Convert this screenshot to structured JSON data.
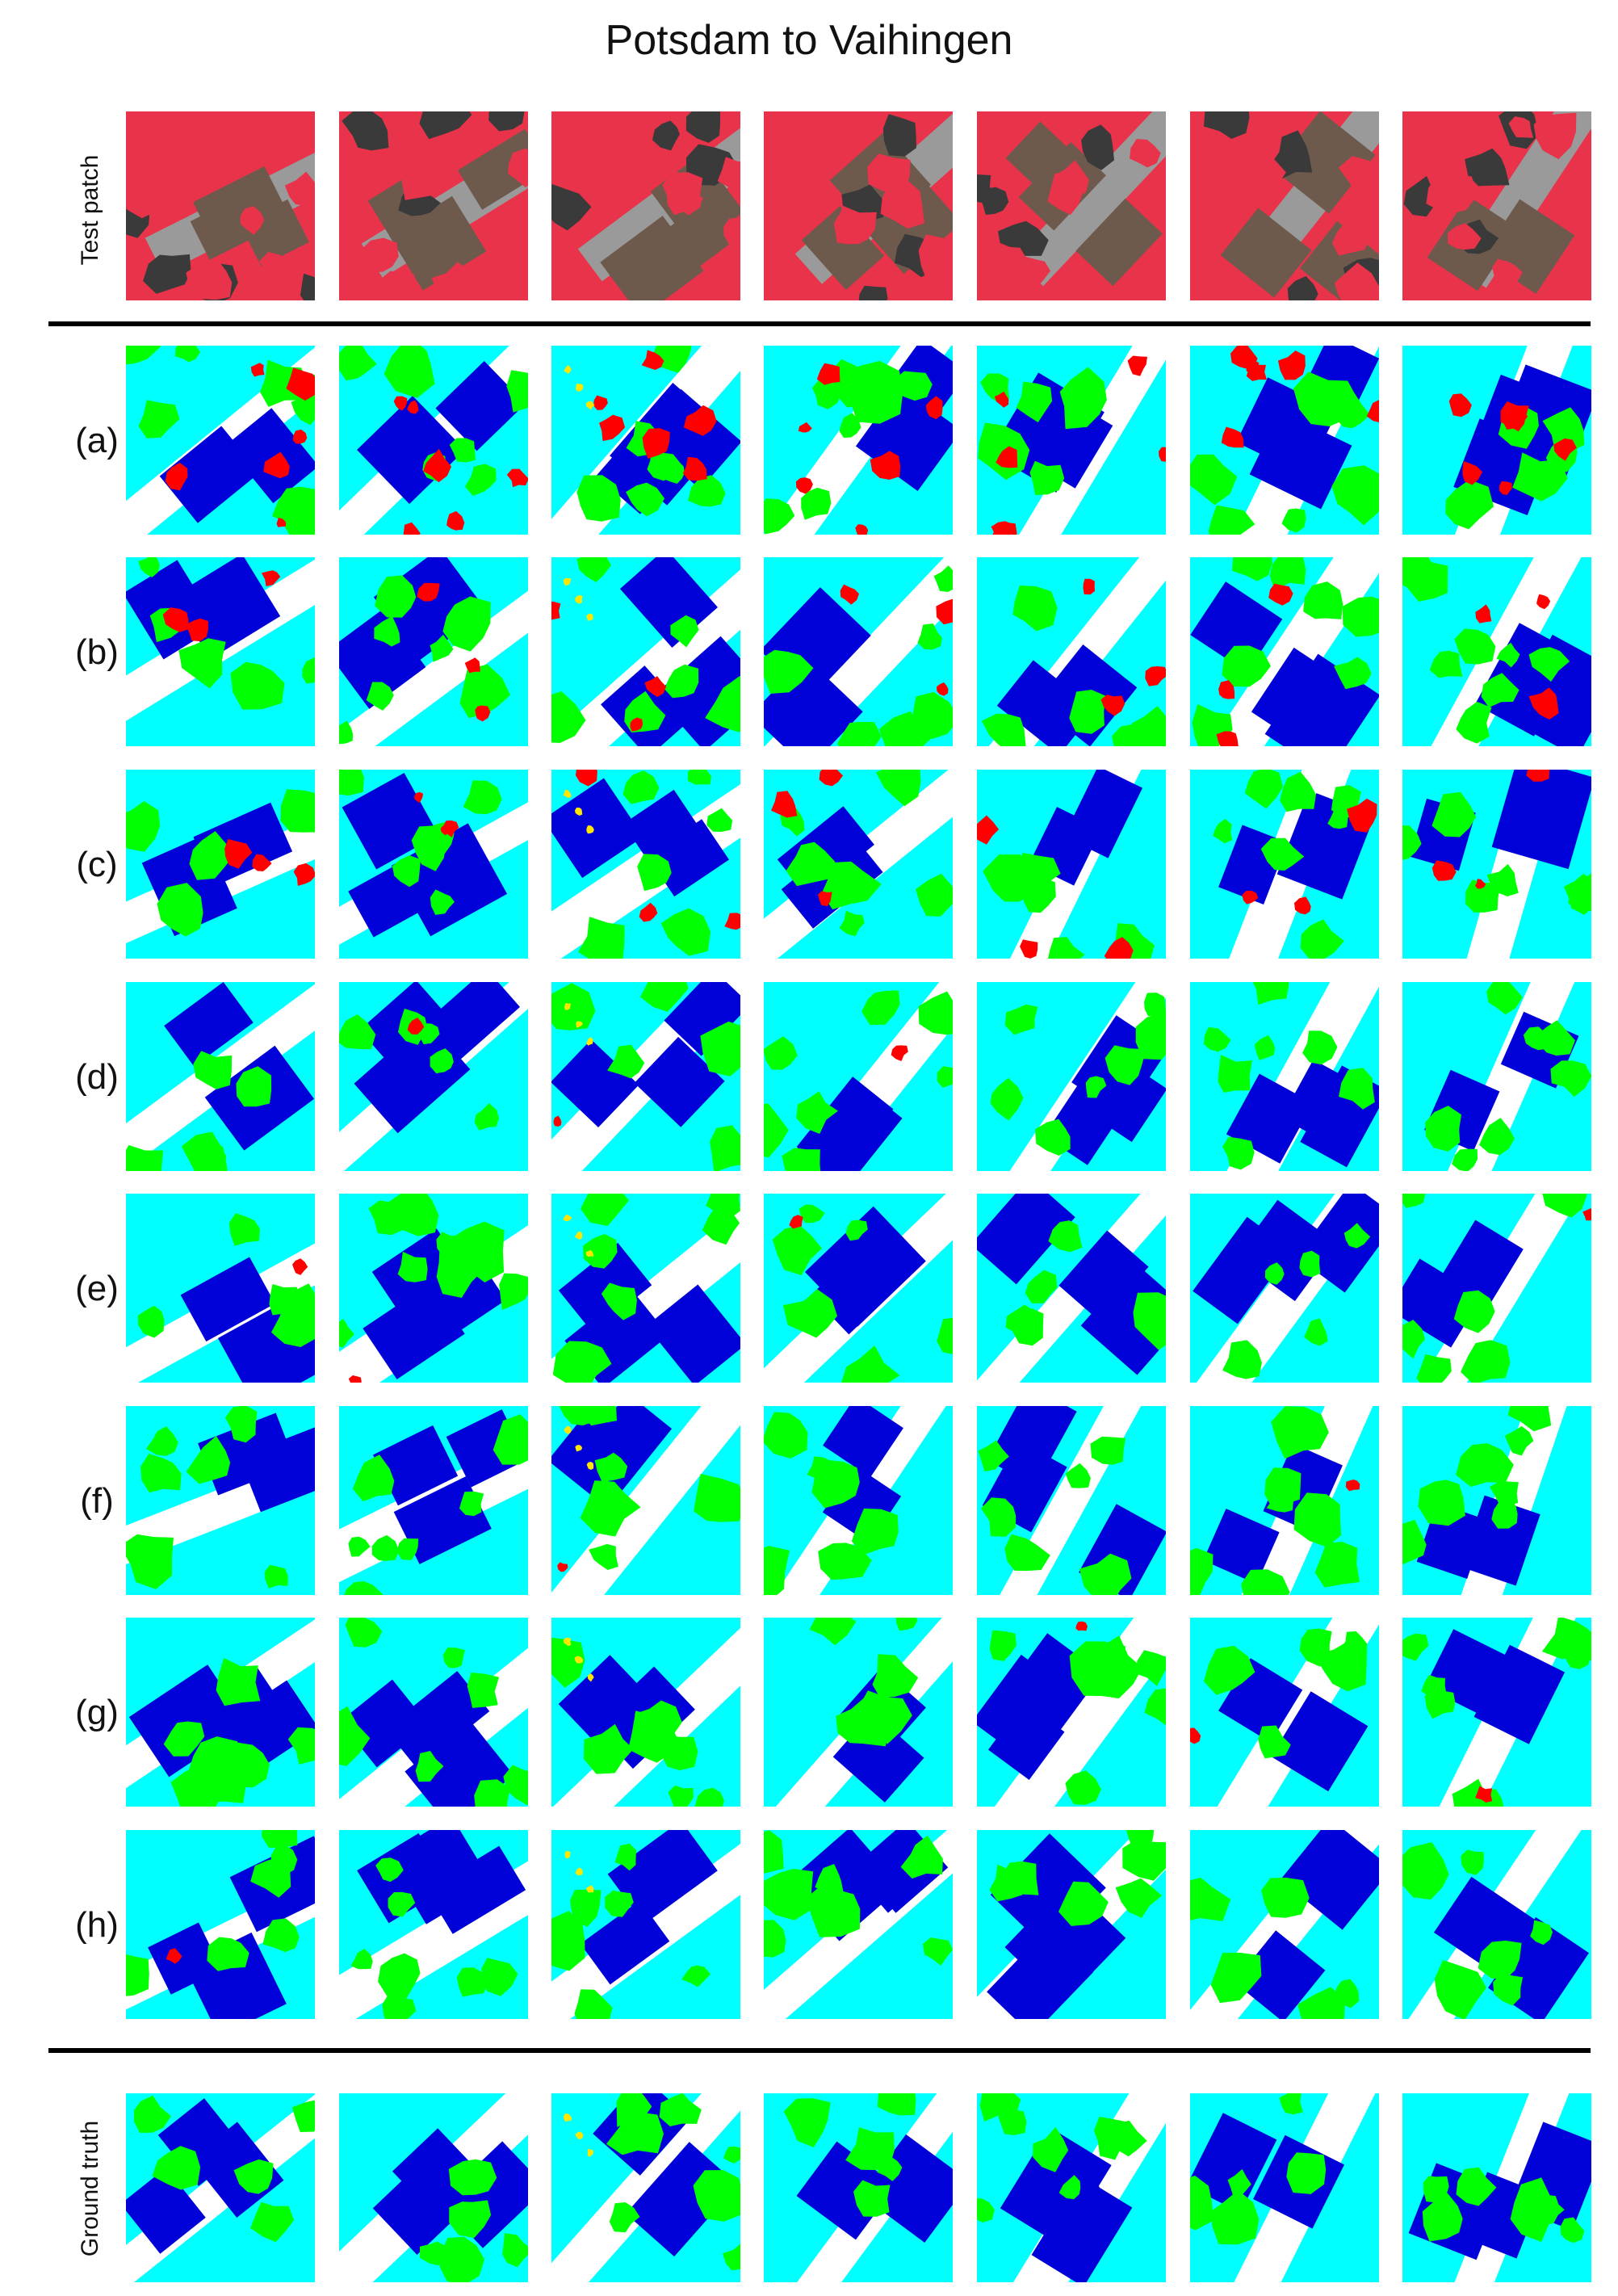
{
  "title": "Potsdam to Vaihingen",
  "row_labels": {
    "test_patch": "Test patch",
    "a": "(a)",
    "b": "(b)",
    "c": "(c)",
    "d": "(d)",
    "e": "(e)",
    "f": "(f)",
    "g": "(g)",
    "h": "(h)",
    "ground_truth": "Ground truth"
  },
  "class_colors": {
    "impervious_surface": "#ffffff",
    "building": "#0000d8",
    "low_vegetation": "#00ffff",
    "tree": "#00ff00",
    "car": "#ffe600",
    "clutter": "#ff0000"
  },
  "test_patch_colors": {
    "vegetation": "#e8334a",
    "roof": "#6e5a4c",
    "road": "#9a9a9a",
    "shadow": "#3a3a3a"
  }
}
